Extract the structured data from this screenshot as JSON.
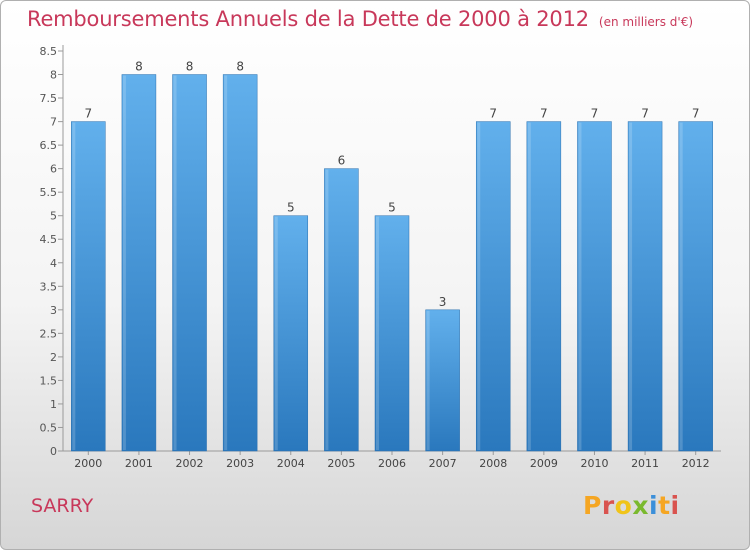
{
  "header": {
    "title": "Remboursements Annuels de la Dette de 2000 à 2012",
    "unit": "(en milliers d'€)"
  },
  "footer": {
    "city": "SARRY",
    "logo_text": "Proxiti"
  },
  "colors": {
    "bar": "#3a8fd6",
    "bar_light": "#62b0ec",
    "title": "#c8385a",
    "logo": [
      "#f5a623",
      "#d9534f",
      "#f0c419",
      "#7ab92e",
      "#3b8fd9",
      "#f5a623",
      "#d9534f"
    ]
  },
  "chart_data": {
    "type": "bar",
    "title": "Remboursements Annuels de la Dette de 2000 à 2012",
    "xlabel": "",
    "ylabel": "",
    "categories": [
      "2000",
      "2001",
      "2002",
      "2003",
      "2004",
      "2005",
      "2006",
      "2007",
      "2008",
      "2009",
      "2010",
      "2011",
      "2012"
    ],
    "values": [
      7,
      8,
      8,
      8,
      5,
      6,
      5,
      3,
      7,
      7,
      7,
      7,
      7
    ],
    "ylim": [
      0,
      8.5
    ],
    "yticks": [
      "0",
      "0.5",
      "1",
      "1.5",
      "2",
      "2.5",
      "3",
      "3.5",
      "4",
      "4.5",
      "5",
      "5.5",
      "6",
      "6.5",
      "7",
      "7.5",
      "8",
      "8.5"
    ],
    "grid": false,
    "legend": "none"
  }
}
